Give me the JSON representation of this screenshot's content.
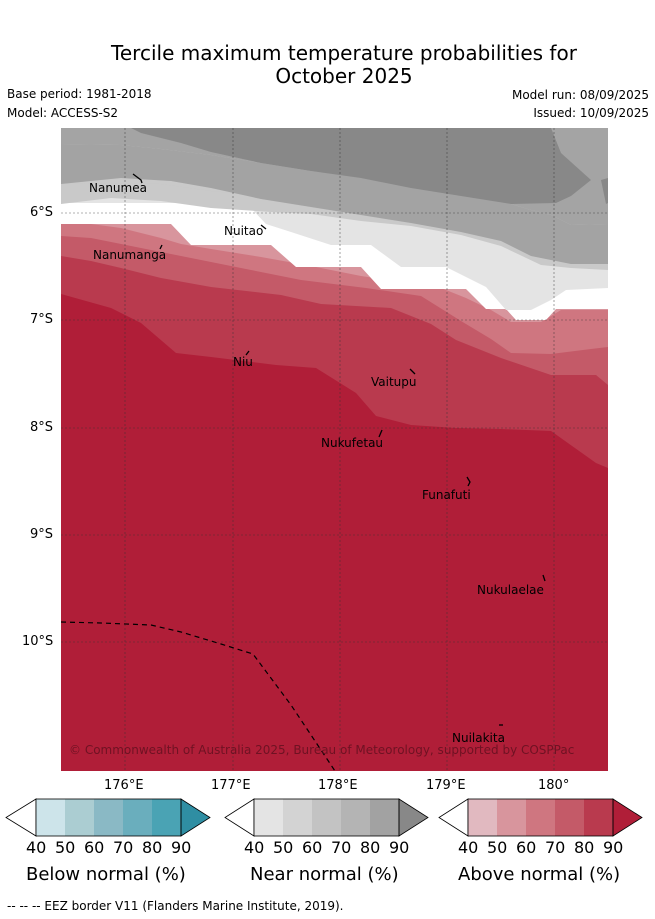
{
  "title_line1": "Tercile maximum temperature probabilities for",
  "title_line2": "October 2025",
  "base_period": "Base period: 1981-2018",
  "model": "Model: ACCESS-S2",
  "model_run": "Model run: 08/09/2025",
  "issued": "Issued: 10/09/2025",
  "x_ticks": [
    "176°E",
    "177°E",
    "178°E",
    "179°E",
    "180°"
  ],
  "y_ticks": [
    "6°S",
    "7°S",
    "8°S",
    "9°S",
    "10°S"
  ],
  "places": [
    "Nanumea",
    "Nuitao",
    "Nanumanga",
    "Niu",
    "Vaitupu",
    "Nukufetau",
    "Funafuti",
    "Nukulaelae",
    "Nuilakita"
  ],
  "copyright": "© Commonwealth of Australia 2025, Bureau of Meteorology, supported by COSPPac",
  "colorbars": [
    {
      "title": "Below normal (%)",
      "labels": [
        "40",
        "50",
        "60",
        "70",
        "80",
        "90"
      ],
      "colors": [
        "#cde4ea",
        "#abcdd2",
        "#8ab9c5",
        "#6aaebd",
        "#4aa3b4",
        "#2f8ea3"
      ]
    },
    {
      "title": "Near normal (%)",
      "labels": [
        "40",
        "50",
        "60",
        "70",
        "80",
        "90"
      ],
      "colors": [
        "#e4e4e4",
        "#d3d3d3",
        "#c3c3c3",
        "#b4b4b4",
        "#a2a2a2",
        "#888888"
      ]
    },
    {
      "title": "Above normal (%)",
      "labels": [
        "40",
        "50",
        "60",
        "70",
        "80",
        "90"
      ],
      "colors": [
        "#e1b9c0",
        "#d8959d",
        "#cf7680",
        "#c45a68",
        "#b93a4e",
        "#b01e38"
      ]
    }
  ],
  "footer": "--  --  -- EEZ border V11 (Flanders Marine Institute, 2019)."
}
